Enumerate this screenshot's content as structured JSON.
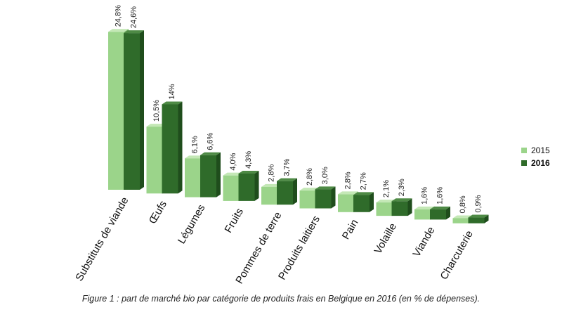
{
  "chart_data": {
    "type": "bar",
    "categories": [
      "Substituts de viande",
      "Œufs",
      "Légumes",
      "Fruits",
      "Pommes de terre",
      "Produits laitiers",
      "Pain",
      "Volaille",
      "Viande",
      "Charcuterie"
    ],
    "series": [
      {
        "name": "2015",
        "values": [
          24.8,
          10.5,
          6.1,
          4.0,
          2.8,
          2.8,
          2.8,
          2.1,
          1.6,
          0.8
        ],
        "labels": [
          "24,8%",
          "10,5%",
          "6,1%",
          "4,0%",
          "2,8%",
          "2,8%",
          "2,8%",
          "2,1%",
          "1,6%",
          "0,8%"
        ]
      },
      {
        "name": "2016",
        "values": [
          24.6,
          14,
          6.6,
          4.3,
          3.7,
          3.0,
          2.7,
          2.3,
          1.6,
          0.9
        ],
        "labels": [
          "24,6%",
          "14%",
          "6,6%",
          "4,3%",
          "3,7%",
          "3,0%",
          "2,7%",
          "2,3%",
          "1,6%",
          "0,9%"
        ]
      }
    ],
    "colors": {
      "2015": "#9bd48a",
      "2016": "#2f6b2a"
    },
    "ylim": [
      0,
      25
    ],
    "legend_position": "right",
    "grid": false
  },
  "legend": {
    "label_2015": "2015",
    "label_2016": "2016"
  },
  "caption": "Figure 1 : part de marché bio par catégorie de produits frais en Belgique en 2016 (en % de dépenses)."
}
